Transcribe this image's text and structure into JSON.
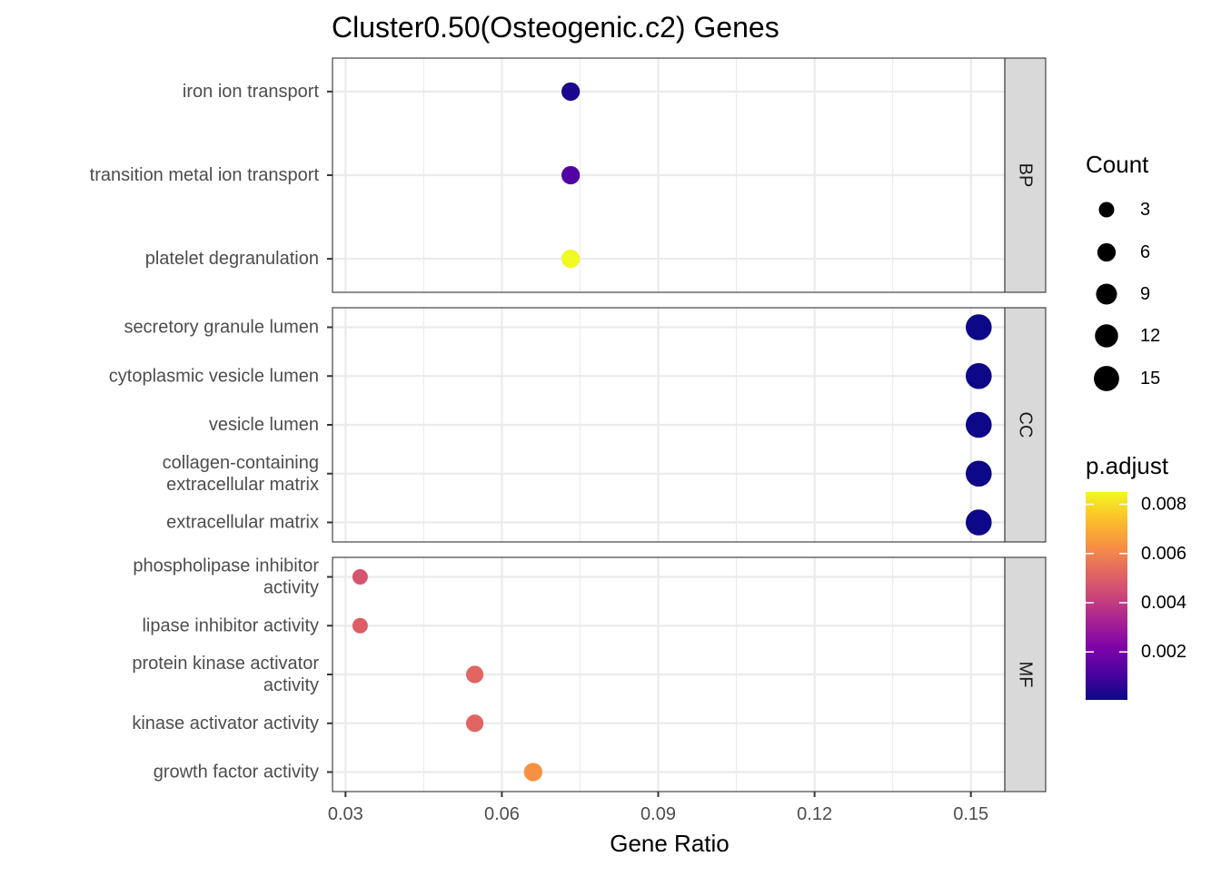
{
  "chart_data": {
    "type": "scatter",
    "title": "Cluster0.50(Osteogenic.c2) Genes",
    "xlabel": "Gene Ratio",
    "xlim": [
      0.0275,
      0.1565
    ],
    "x_ticks": [
      "0.03",
      "0.06",
      "0.09",
      "0.12",
      "0.15"
    ],
    "x_tick_values": [
      0.03,
      0.06,
      0.09,
      0.12,
      0.15
    ],
    "grid": true,
    "facets": [
      {
        "label": "BP",
        "terms": [
          {
            "label": [
              "iron ion transport"
            ],
            "x": 0.0732,
            "count": 6,
            "p_adjust": 0.0003
          },
          {
            "label": [
              "transition metal ion transport"
            ],
            "x": 0.0732,
            "count": 6,
            "p_adjust": 0.0013
          },
          {
            "label": [
              "platelet degranulation"
            ],
            "x": 0.0732,
            "count": 6,
            "p_adjust": 0.0085
          }
        ]
      },
      {
        "label": "CC",
        "terms": [
          {
            "label": [
              "secretory granule lumen"
            ],
            "x": 0.1515,
            "count": 16,
            "p_adjust": 5e-05
          },
          {
            "label": [
              "cytoplasmic vesicle lumen"
            ],
            "x": 0.1515,
            "count": 16,
            "p_adjust": 5e-05
          },
          {
            "label": [
              "vesicle lumen"
            ],
            "x": 0.1515,
            "count": 16,
            "p_adjust": 5e-05
          },
          {
            "label": [
              "collagen-containing",
              "extracellular matrix"
            ],
            "x": 0.1515,
            "count": 16,
            "p_adjust": 5e-05
          },
          {
            "label": [
              "extracellular matrix"
            ],
            "x": 0.1515,
            "count": 16,
            "p_adjust": 5e-05
          }
        ]
      },
      {
        "label": "MF",
        "terms": [
          {
            "label": [
              "phospholipase inhibitor",
              "activity"
            ],
            "x": 0.0328,
            "count": 3,
            "p_adjust": 0.0047
          },
          {
            "label": [
              "lipase inhibitor activity"
            ],
            "x": 0.0328,
            "count": 3,
            "p_adjust": 0.005
          },
          {
            "label": [
              "protein kinase activator",
              "activity"
            ],
            "x": 0.0548,
            "count": 5,
            "p_adjust": 0.0052
          },
          {
            "label": [
              "kinase activator activity"
            ],
            "x": 0.0548,
            "count": 5,
            "p_adjust": 0.0052
          },
          {
            "label": [
              "growth factor activity"
            ],
            "x": 0.066,
            "count": 6,
            "p_adjust": 0.0063
          }
        ]
      }
    ],
    "legend_size": {
      "title": "Count",
      "labels": [
        "3",
        "6",
        "9",
        "12",
        "15"
      ],
      "values": [
        3,
        6,
        9,
        12,
        15
      ]
    },
    "legend_color": {
      "title": "p.adjust",
      "labels": [
        "0.008",
        "0.006",
        "0.004",
        "0.002"
      ],
      "values": [
        0.008,
        0.006,
        0.004,
        0.002
      ],
      "range": [
        5e-05,
        0.0085
      ],
      "colormap": "plasma"
    },
    "legend_placement": "right"
  }
}
